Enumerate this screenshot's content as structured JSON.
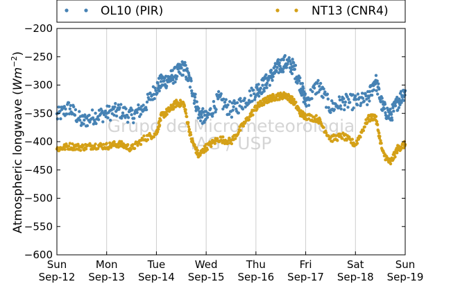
{
  "chart_data": {
    "type": "scatter",
    "ylabel": "Atmospheric longwave",
    "ylabel_unit_base": "Wm",
    "ylabel_unit_exp": "−2",
    "ylim": [
      -600,
      -200
    ],
    "yticks": [
      -200,
      -250,
      -300,
      -350,
      -400,
      -450,
      -500,
      -550,
      -600
    ],
    "ytick_labels": [
      "−200",
      "−250",
      "−300",
      "−350",
      "−400",
      "−450",
      "−500",
      "−550",
      "−600"
    ],
    "xlim": [
      "2011-09-12",
      "2011-09-19"
    ],
    "x_ticks": [
      {
        "day": "Sun",
        "date": "Sep-12"
      },
      {
        "day": "Mon",
        "date": "Sep-13"
      },
      {
        "day": "Tue",
        "date": "Sep-14"
      },
      {
        "day": "Wed",
        "date": "Sep-15"
      },
      {
        "day": "Thu",
        "date": "Sep-16"
      },
      {
        "day": "Fri",
        "date": "Sep-17"
      },
      {
        "day": "Sat",
        "date": "Sep-18"
      },
      {
        "day": "Sun",
        "date": "Sep-19"
      }
    ],
    "grid": "vertical",
    "legend": "top",
    "watermark": [
      "Grupo de Micrometeorologia",
      "IAG / USP"
    ],
    "series": [
      {
        "name": "OL10 (PIR)",
        "color": "#4682b4",
        "x_days": [
          0.0,
          0.25,
          0.5,
          0.75,
          1.0,
          1.25,
          1.5,
          1.75,
          2.0,
          2.1,
          2.25,
          2.4,
          2.55,
          2.7,
          2.85,
          3.0,
          3.25,
          3.5,
          3.75,
          4.0,
          4.15,
          4.3,
          4.45,
          4.6,
          4.75,
          4.9,
          5.0,
          5.25,
          5.5,
          5.75,
          6.0,
          6.25,
          6.4,
          6.55,
          6.7,
          6.85,
          7.0
        ],
        "y": [
          -355,
          -340,
          -365,
          -355,
          -350,
          -345,
          -355,
          -340,
          -305,
          -295,
          -290,
          -280,
          -268,
          -300,
          -350,
          -360,
          -325,
          -345,
          -330,
          -310,
          -300,
          -285,
          -268,
          -260,
          -268,
          -300,
          -330,
          -300,
          -340,
          -330,
          -330,
          -325,
          -290,
          -340,
          -355,
          -330,
          -310
        ]
      },
      {
        "name": "NT13 (CNR4)",
        "color": "#d4a017",
        "x_days": [
          0.0,
          0.25,
          0.5,
          0.75,
          1.0,
          1.25,
          1.5,
          1.75,
          2.0,
          2.1,
          2.25,
          2.4,
          2.55,
          2.7,
          2.85,
          3.0,
          3.25,
          3.5,
          3.75,
          4.0,
          4.15,
          4.3,
          4.45,
          4.6,
          4.75,
          4.9,
          5.0,
          5.25,
          5.5,
          5.75,
          6.0,
          6.25,
          6.4,
          6.55,
          6.7,
          6.85,
          7.0
        ],
        "y": [
          -413,
          -408,
          -410,
          -407,
          -408,
          -404,
          -412,
          -395,
          -385,
          -355,
          -345,
          -332,
          -333,
          -395,
          -425,
          -410,
          -395,
          -400,
          -370,
          -340,
          -330,
          -323,
          -320,
          -318,
          -328,
          -350,
          -355,
          -360,
          -395,
          -390,
          -405,
          -360,
          -355,
          -420,
          -438,
          -412,
          -405
        ]
      }
    ]
  }
}
